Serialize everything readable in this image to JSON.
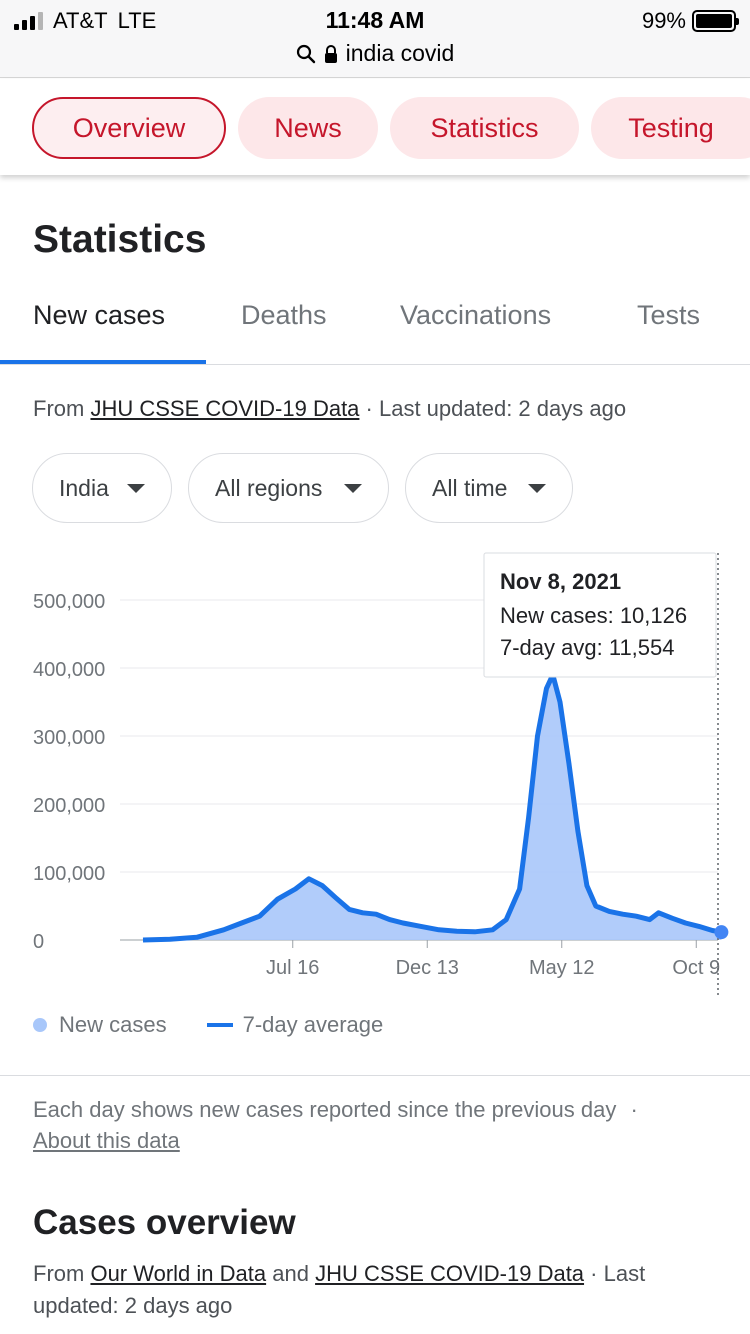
{
  "status_bar": {
    "carrier": "AT&T",
    "network": "LTE",
    "time": "11:48 AM",
    "battery": "99%",
    "url": "india covid"
  },
  "chips": [
    "Overview",
    "News",
    "Statistics",
    "Testing"
  ],
  "section_title": "Statistics",
  "tabs": [
    "New cases",
    "Deaths",
    "Vaccinations",
    "Tests"
  ],
  "source": {
    "prefix": "From",
    "link": "JHU CSSE COVID-19 Data",
    "updated": "· Last updated: 2 days ago"
  },
  "filters": {
    "country": "India",
    "region": "All regions",
    "period": "All time"
  },
  "tooltip": {
    "date": "Nov 8, 2021",
    "new_cases": "New cases: 10,126",
    "avg": "7-day avg: 11,554"
  },
  "legend": {
    "new_cases": "New cases",
    "avg": "7-day average"
  },
  "colors": {
    "accent": "#1a73e8",
    "area": "#a8c7fa",
    "chip_text": "#c5162b",
    "chip_bg": "#fde7e9"
  },
  "note": {
    "text": "Each day shows new cases reported since the previous day",
    "sep": "·",
    "link": "About this data"
  },
  "overview": {
    "title": "Cases overview",
    "prefix": "From",
    "link1": "Our World in Data",
    "and": "and",
    "link2": "JHU CSSE COVID-19 Data",
    "suffix": "· Last updated: 2 days ago"
  },
  "chart_data": {
    "type": "area",
    "xlabel": "",
    "ylabel": "",
    "ylim": [
      0,
      500000
    ],
    "yticks": [
      "0",
      "100,000",
      "200,000",
      "300,000",
      "400,000",
      "500,000"
    ],
    "xticks": [
      {
        "label": "Jul 16",
        "day": 167
      },
      {
        "label": "Dec 13",
        "day": 317
      },
      {
        "label": "May 12",
        "day": 467
      },
      {
        "label": "Oct 9",
        "day": 617
      }
    ],
    "series": [
      {
        "name": "7-day average",
        "points": [
          [
            0,
            0
          ],
          [
            30,
            1000
          ],
          [
            60,
            4000
          ],
          [
            90,
            15000
          ],
          [
            110,
            25000
          ],
          [
            130,
            35000
          ],
          [
            150,
            60000
          ],
          [
            170,
            75000
          ],
          [
            185,
            90000
          ],
          [
            200,
            80000
          ],
          [
            215,
            62000
          ],
          [
            230,
            45000
          ],
          [
            245,
            40000
          ],
          [
            260,
            38000
          ],
          [
            275,
            30000
          ],
          [
            290,
            25000
          ],
          [
            310,
            20000
          ],
          [
            330,
            15000
          ],
          [
            350,
            13000
          ],
          [
            370,
            12000
          ],
          [
            390,
            15000
          ],
          [
            405,
            30000
          ],
          [
            420,
            75000
          ],
          [
            430,
            180000
          ],
          [
            440,
            300000
          ],
          [
            450,
            370000
          ],
          [
            457,
            390000
          ],
          [
            465,
            350000
          ],
          [
            475,
            260000
          ],
          [
            485,
            160000
          ],
          [
            495,
            80000
          ],
          [
            505,
            50000
          ],
          [
            520,
            42000
          ],
          [
            535,
            38000
          ],
          [
            550,
            35000
          ],
          [
            565,
            30000
          ],
          [
            575,
            40000
          ],
          [
            590,
            32000
          ],
          [
            605,
            25000
          ],
          [
            620,
            20000
          ],
          [
            635,
            14000
          ],
          [
            645,
            11554
          ]
        ]
      }
    ]
  }
}
